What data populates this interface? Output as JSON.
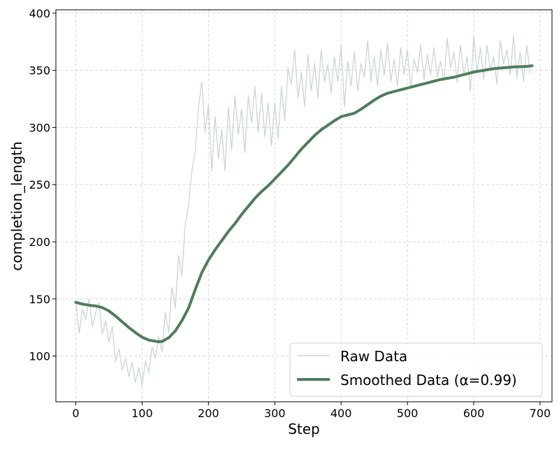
{
  "chart_data": {
    "type": "line",
    "xlabel": "Step",
    "ylabel": "completion_length",
    "xlim": [
      -30,
      718
    ],
    "ylim": [
      60,
      403
    ],
    "xticks": [
      0,
      100,
      200,
      300,
      400,
      500,
      600,
      700
    ],
    "yticks": [
      100,
      150,
      200,
      250,
      300,
      350,
      400
    ],
    "xtick_labels": [
      "0",
      "100",
      "200",
      "300",
      "400",
      "500",
      "600",
      "700"
    ],
    "ytick_labels": [
      "100",
      "150",
      "200",
      "250",
      "300",
      "350",
      "400"
    ],
    "grid": true,
    "legend_position": "bottom-right",
    "series": [
      {
        "name": "Raw Data",
        "color": "#c9d6d2",
        "style": "thin",
        "x": [
          0,
          5,
          10,
          15,
          20,
          25,
          30,
          35,
          40,
          45,
          50,
          55,
          60,
          65,
          70,
          75,
          80,
          85,
          90,
          95,
          100,
          105,
          110,
          115,
          120,
          125,
          130,
          135,
          140,
          145,
          150,
          155,
          160,
          165,
          170,
          175,
          180,
          185,
          190,
          195,
          200,
          205,
          210,
          215,
          220,
          225,
          230,
          235,
          240,
          245,
          250,
          255,
          260,
          265,
          270,
          275,
          280,
          285,
          290,
          295,
          300,
          305,
          310,
          315,
          320,
          325,
          330,
          335,
          340,
          345,
          350,
          355,
          360,
          365,
          370,
          375,
          380,
          385,
          390,
          395,
          400,
          405,
          410,
          415,
          420,
          425,
          430,
          435,
          440,
          445,
          450,
          455,
          460,
          465,
          470,
          475,
          480,
          485,
          490,
          495,
          500,
          505,
          510,
          515,
          520,
          525,
          530,
          535,
          540,
          545,
          550,
          555,
          560,
          565,
          570,
          575,
          580,
          585,
          590,
          595,
          600,
          605,
          610,
          615,
          620,
          625,
          630,
          635,
          640,
          645,
          650,
          655,
          660,
          665,
          670,
          675,
          680,
          685
        ],
        "values": [
          148,
          120,
          141,
          132,
          150,
          126,
          138,
          147,
          119,
          131,
          112,
          126,
          95,
          106,
          88,
          98,
          82,
          95,
          77,
          90,
          74,
          96,
          86,
          108,
          98,
          117,
          104,
          138,
          121,
          160,
          142,
          188,
          170,
          215,
          232,
          262,
          278,
          318,
          340,
          296,
          320,
          262,
          310,
          273,
          298,
          262,
          318,
          280,
          328,
          294,
          316,
          278,
          328,
          304,
          336,
          296,
          330,
          292,
          322,
          284,
          322,
          290,
          336,
          306,
          352,
          338,
          368,
          326,
          348,
          318,
          364,
          332,
          356,
          326,
          368,
          340,
          355,
          330,
          362,
          340,
          372,
          318,
          358,
          336,
          366,
          332,
          356,
          344,
          376,
          340,
          362,
          336,
          368,
          346,
          374,
          340,
          360,
          336,
          370,
          346,
          368,
          334,
          360,
          348,
          372,
          342,
          364,
          346,
          370,
          344,
          358,
          340,
          378,
          352,
          366,
          340,
          372,
          346,
          362,
          332,
          380,
          348,
          370,
          342,
          372,
          350,
          362,
          338,
          376,
          356,
          368,
          346,
          380,
          344,
          366,
          340,
          372,
          348
        ]
      },
      {
        "name": "Smoothed Data (α=0.99)",
        "color": "#4e7d5a",
        "style": "thick",
        "x": [
          0,
          10,
          20,
          30,
          40,
          50,
          60,
          70,
          80,
          90,
          100,
          110,
          120,
          125,
          130,
          140,
          150,
          160,
          170,
          180,
          190,
          200,
          210,
          220,
          230,
          240,
          250,
          260,
          270,
          280,
          290,
          300,
          310,
          320,
          330,
          340,
          350,
          360,
          370,
          380,
          390,
          400,
          410,
          420,
          430,
          440,
          450,
          460,
          470,
          480,
          490,
          500,
          510,
          520,
          530,
          540,
          550,
          560,
          570,
          580,
          590,
          600,
          610,
          620,
          630,
          640,
          650,
          660,
          670,
          680,
          688
        ],
        "values": [
          147,
          145.5,
          144.5,
          143.8,
          142.5,
          139.5,
          135,
          130,
          125,
          120.5,
          116.5,
          114,
          113,
          112.5,
          112.8,
          116,
          122,
          131,
          142,
          158,
          173,
          184,
          193,
          201,
          209,
          216,
          224,
          231,
          238,
          244,
          249,
          255,
          261,
          267,
          274,
          281,
          287,
          293,
          298,
          302,
          306,
          309.5,
          311,
          312.5,
          316,
          320,
          324,
          327.5,
          330,
          331.5,
          333,
          334.5,
          336,
          337.5,
          339,
          340.5,
          342,
          343,
          344,
          345.5,
          347,
          348.5,
          349.5,
          350.5,
          351.5,
          352,
          352.5,
          353,
          353.2,
          353.5,
          354
        ]
      }
    ]
  }
}
